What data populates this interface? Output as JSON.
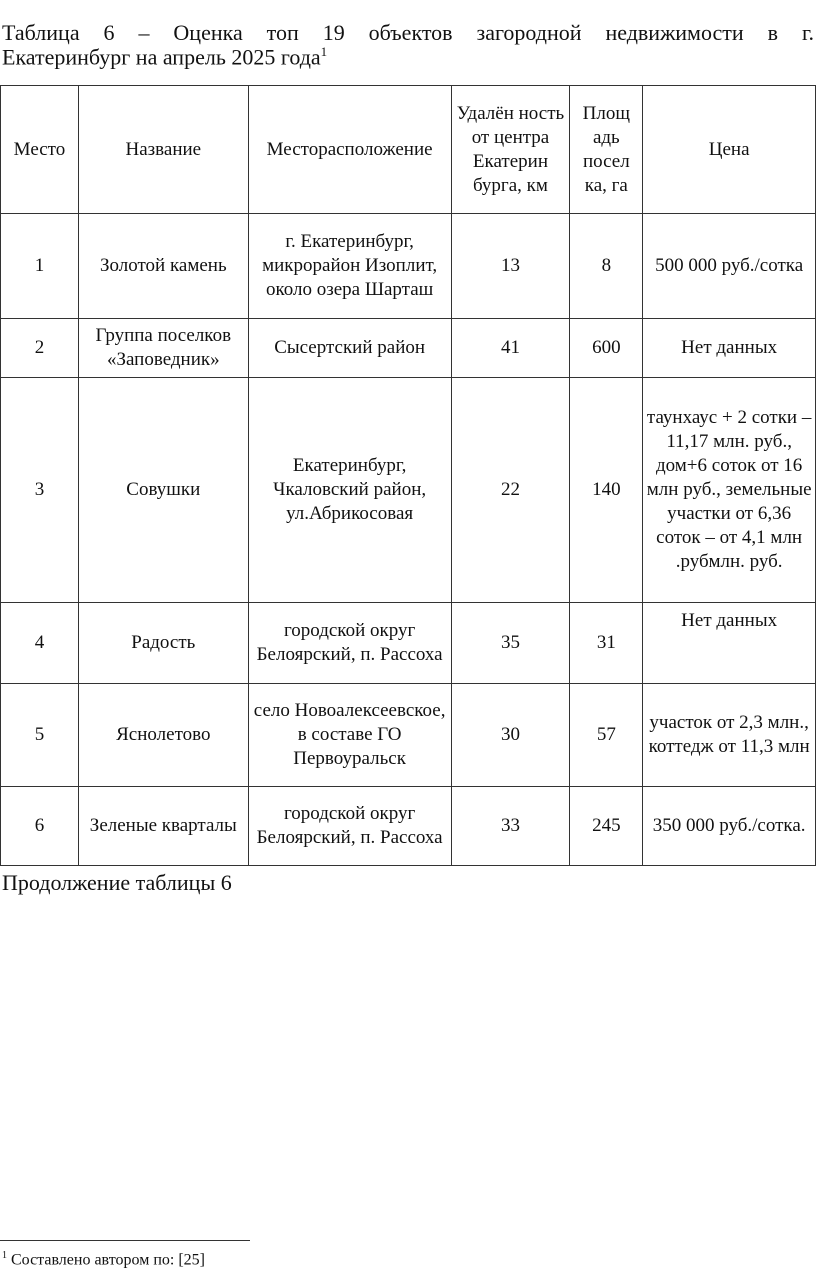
{
  "title_line1": "Таблица 6 – Оценка топ 19 объектов загородной недвижимости в г.",
  "title_line2": "Екатеринбург на апрель 2025 года",
  "footnote_mark": "1",
  "headers": [
    "Место",
    "Название",
    "Месторасположение",
    "Удалён ность от центра Екатерин бурга, км",
    "Площ адь посел ка, га",
    "Цена"
  ],
  "rows": [
    [
      "1",
      "Золотой камень",
      "г. Екатеринбург, микрорайон Изоплит, около озера Шарташ",
      "13",
      "8",
      "500 000 руб./сотка"
    ],
    [
      "2",
      "Группа поселков «Заповедник»",
      "Сысертский район",
      "41",
      "600",
      "Нет данных"
    ],
    [
      "3",
      "Совушки",
      "Екатеринбург, Чкаловский район, ул.Абрикосовая",
      "22",
      "140",
      "таунхаус + 2 сотки – 11,17 млн. руб., дом+6 соток от 16 млн руб., земельные участки от 6,36 соток – от 4,1 млн .рубмлн. руб."
    ],
    [
      "4",
      "Радость",
      "городской округ Белоярский, п. Рассоха",
      "35",
      "31",
      "Нет данных"
    ],
    [
      "5",
      "Яснолетово",
      "село Новоалексеевское, в составе ГО Первоуральск",
      "30",
      "57",
      "участок от 2,3 млн., коттедж от 11,3 млн"
    ],
    [
      "6",
      "Зеленые кварталы",
      "городской округ Белоярский, п. Рассоха",
      "33",
      "245",
      "350 000 руб./сотка."
    ]
  ],
  "continuation": "Продолжение таблицы 6",
  "footnote": "Составлено автором по: [25]"
}
